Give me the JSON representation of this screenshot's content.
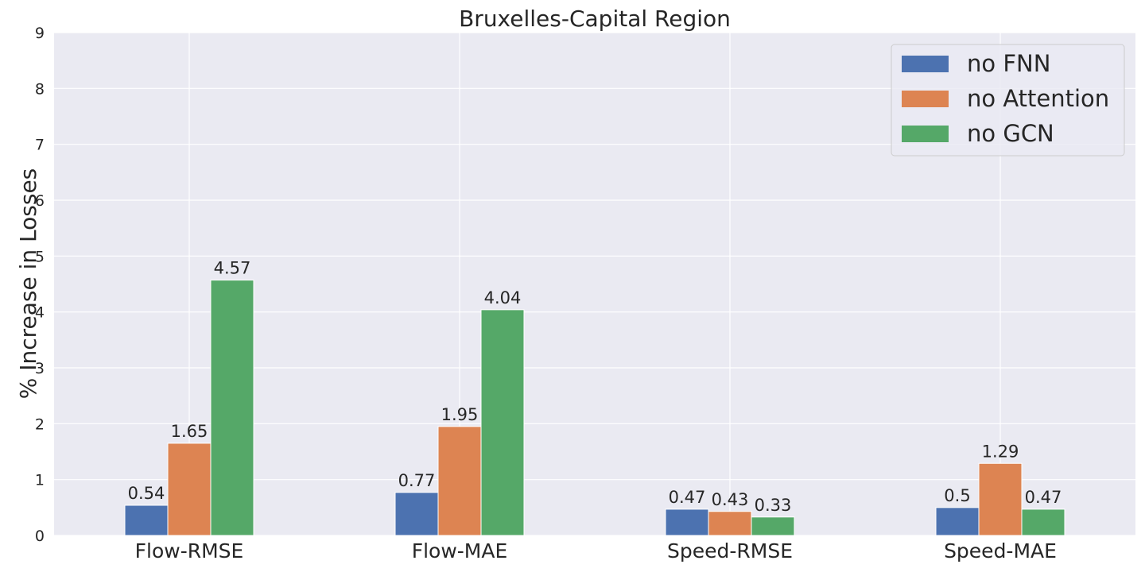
{
  "chart_data": {
    "type": "bar",
    "title": "Bruxelles-Capital Region",
    "xlabel": "",
    "ylabel": "% Increase in Losses",
    "categories": [
      "Flow-RMSE",
      "Flow-MAE",
      "Speed-RMSE",
      "Speed-MAE"
    ],
    "series": [
      {
        "name": "no FNN",
        "values": [
          0.54,
          0.77,
          0.47,
          0.5
        ],
        "labels": [
          "0.54",
          "0.77",
          "0.47",
          "0.5"
        ]
      },
      {
        "name": "no Attention",
        "values": [
          1.65,
          1.95,
          0.43,
          1.29
        ],
        "labels": [
          "1.65",
          "1.95",
          "0.43",
          "1.29"
        ]
      },
      {
        "name": "no GCN",
        "values": [
          4.57,
          4.04,
          0.33,
          0.47
        ],
        "labels": [
          "4.57",
          "4.04",
          "0.33",
          "0.47"
        ]
      }
    ],
    "ylim": [
      0,
      9
    ],
    "yticks": [
      "0",
      "1",
      "2",
      "3",
      "4",
      "5",
      "6",
      "7",
      "8",
      "9"
    ],
    "grid": true,
    "legend_position": "top-right",
    "colors": {
      "series": [
        "#4c72b0",
        "#dd8452",
        "#55a868"
      ],
      "background": "#eaeaf2",
      "grid": "#ffffff"
    }
  }
}
